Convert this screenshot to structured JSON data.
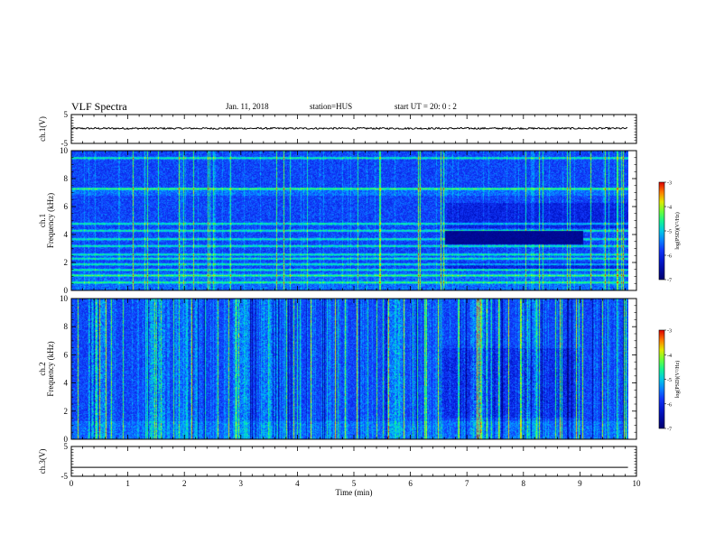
{
  "header": {
    "title": "VLF Spectra",
    "date": "Jan. 11, 2018",
    "station": "station=HUS",
    "start_ut": "start UT =  20: 0  : 2"
  },
  "chart_data": [
    {
      "type": "line",
      "name": "ch1-waveform",
      "ylabel": "ch.1(V)",
      "ylim": [
        -5,
        5
      ],
      "y_ticks": [
        "5",
        "-5"
      ],
      "x": [
        0,
        9.85
      ],
      "series": [
        {
          "values": [
            0.2,
            0.2
          ]
        }
      ],
      "note_level_noise": 0.3
    },
    {
      "type": "heatmap",
      "name": "ch1-spectrogram",
      "ylabel_line1": "ch.1",
      "ylabel_line2": "Frequency (kHz)",
      "ylim": [
        0,
        10
      ],
      "y_ticks": [
        "0",
        "2",
        "4",
        "6",
        "8",
        "10"
      ],
      "x_range_min": [
        0,
        9.85
      ],
      "bright_bands_khz": [
        0.6,
        1.1,
        1.5,
        1.9,
        2.3,
        2.6,
        3.2,
        3.7,
        4.3,
        4.8,
        7.3,
        9.5
      ],
      "dark_patch": {
        "t": [
          6.6,
          9.05
        ],
        "f": [
          3.3,
          4.3
        ]
      },
      "colorbar": {
        "label": "log(PSD)(V²/Hz)",
        "ticks": [
          "-3",
          "-4",
          "-5",
          "-6",
          "-7"
        ],
        "range": [
          -7,
          -3
        ]
      }
    },
    {
      "type": "heatmap",
      "name": "ch2-spectrogram",
      "ylabel_line1": "ch.2",
      "ylabel_line2": "Frequency (kHz)",
      "ylim": [
        0,
        10
      ],
      "y_ticks": [
        "0",
        "2",
        "4",
        "6",
        "8",
        "10"
      ],
      "x_range_min": [
        0,
        9.85
      ],
      "colorbar": {
        "label": "log(PSD)(V²/Hz)",
        "ticks": [
          "-3",
          "-4",
          "-5",
          "-6",
          "-7"
        ],
        "range": [
          -7,
          -3
        ]
      }
    },
    {
      "type": "line",
      "name": "ch3-waveform",
      "ylabel": "ch.3(V)",
      "ylim": [
        -5,
        5
      ],
      "y_ticks": [
        "5",
        "-5"
      ],
      "x": [
        0,
        9.85
      ],
      "series": [
        {
          "values": [
            -2,
            -2
          ]
        }
      ]
    }
  ],
  "x_axis": {
    "label": "Time (min)",
    "range": [
      0,
      10
    ],
    "ticks": [
      "0",
      "1",
      "2",
      "3",
      "4",
      "5",
      "6",
      "7",
      "8",
      "9",
      "10"
    ]
  }
}
